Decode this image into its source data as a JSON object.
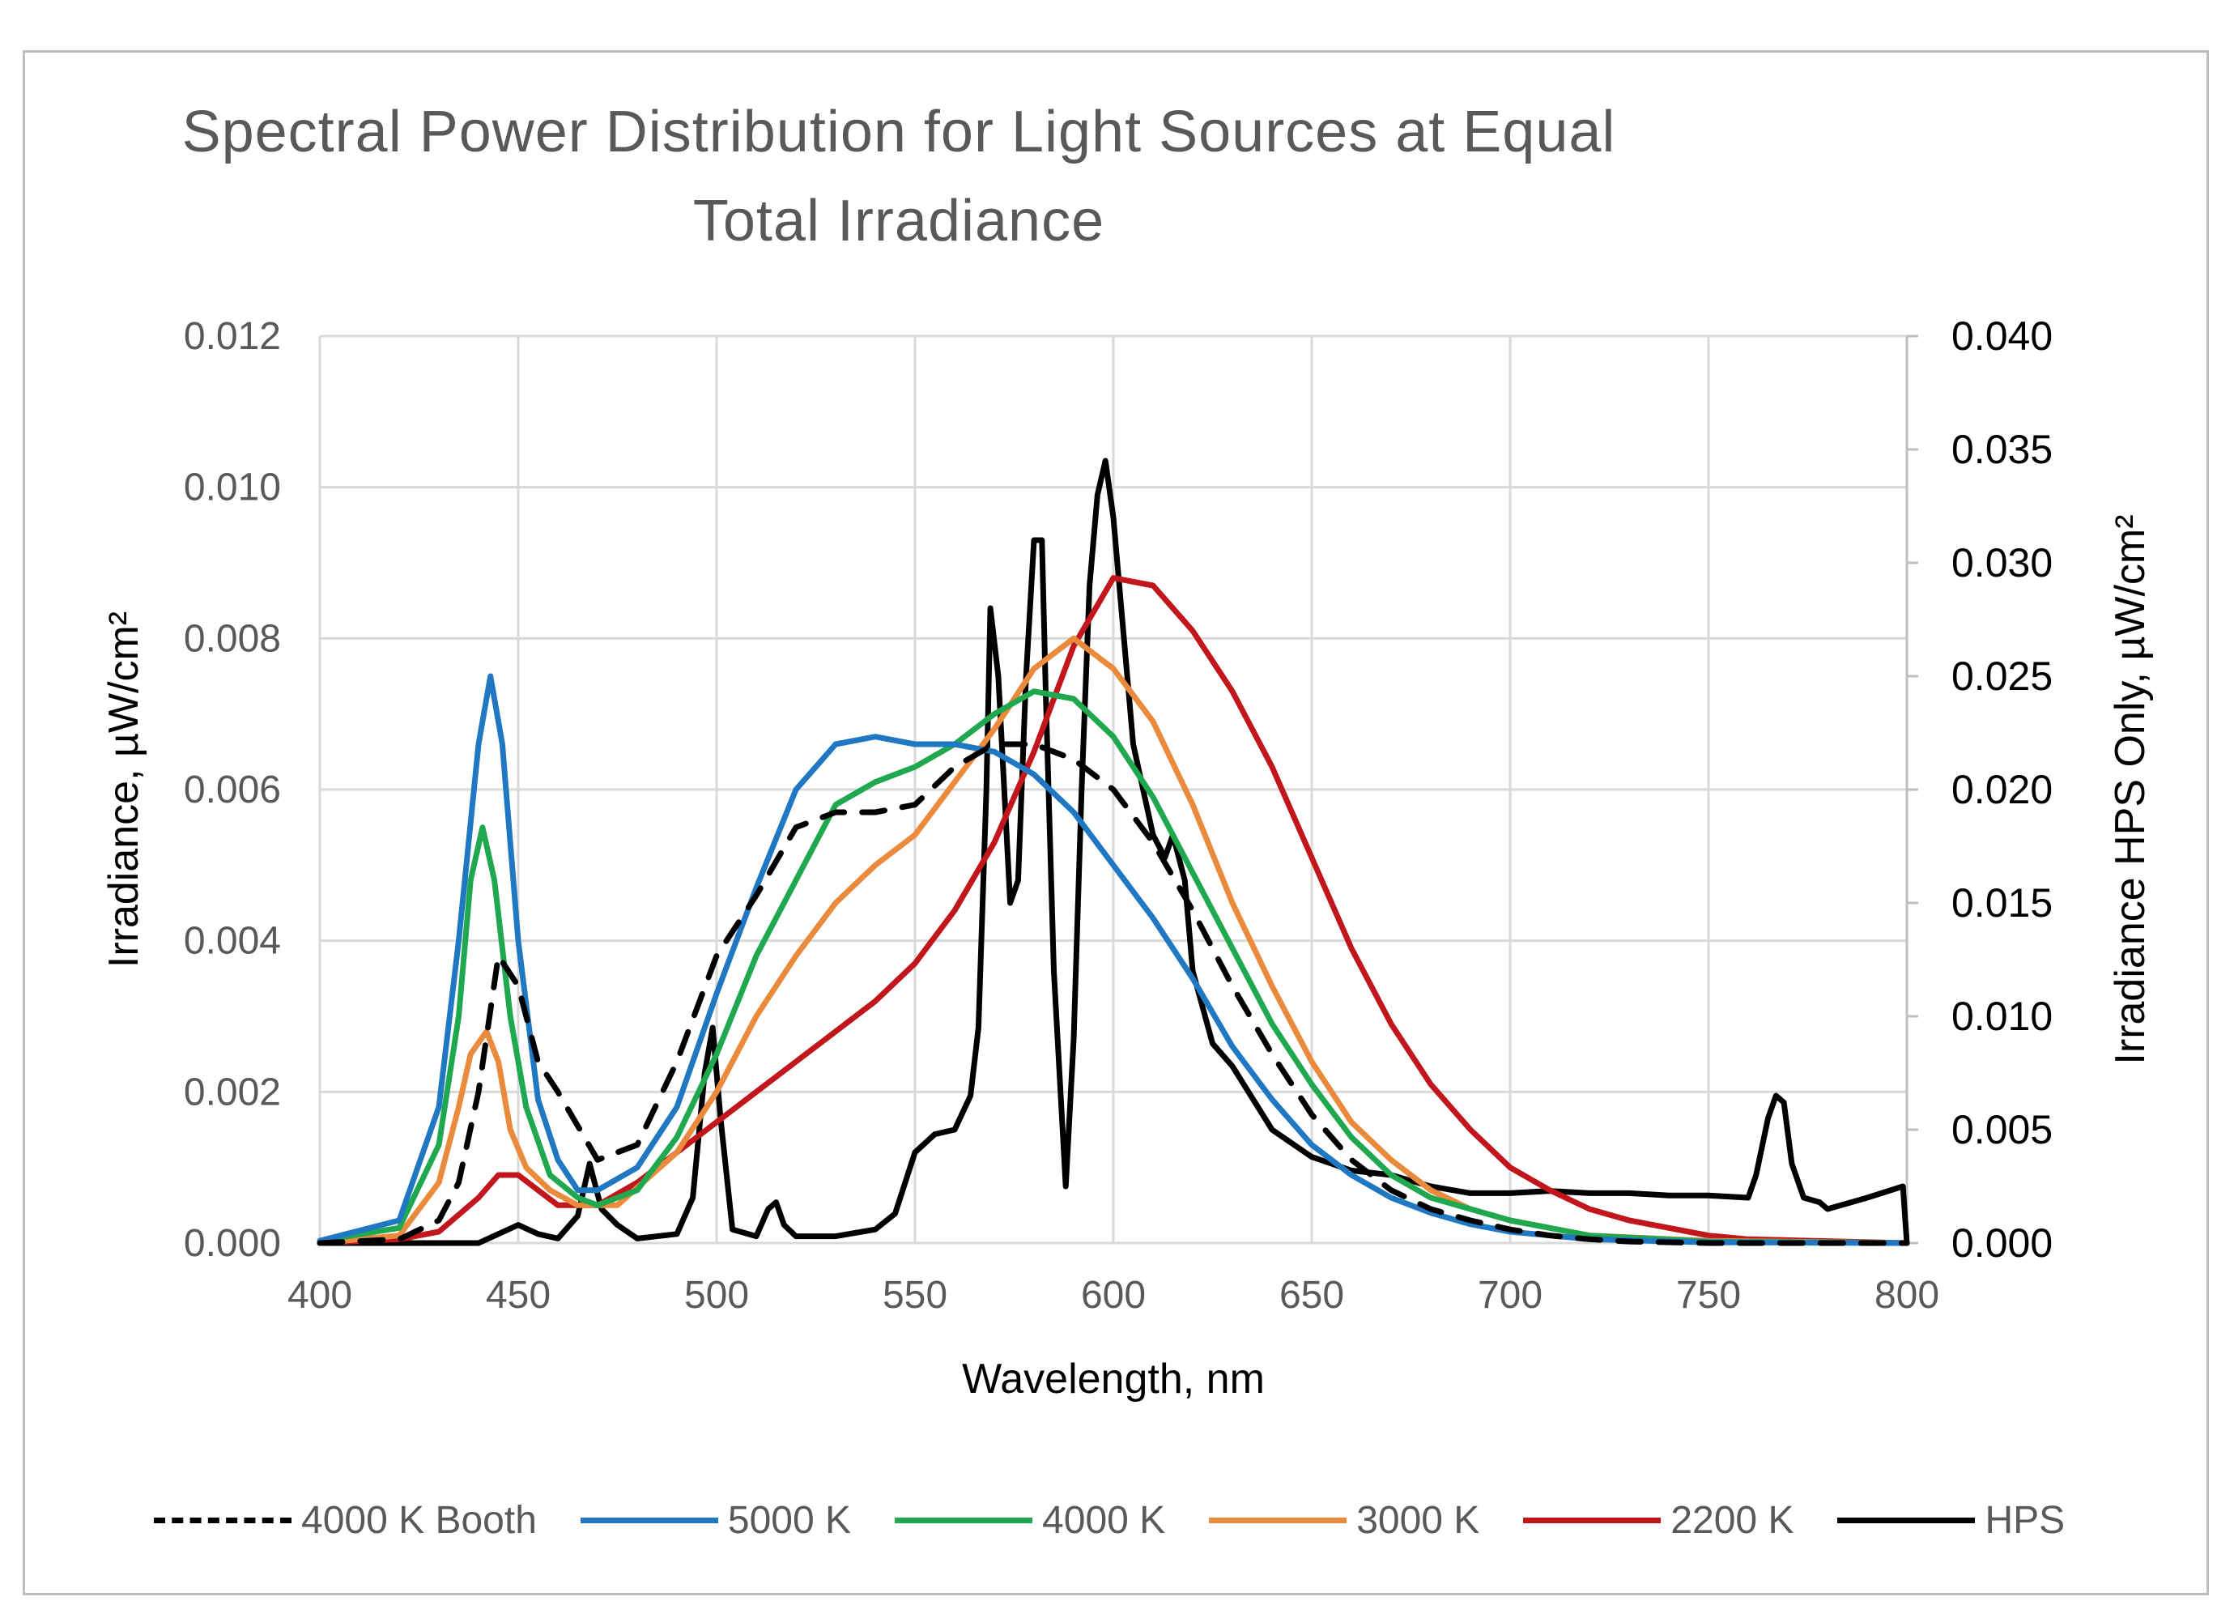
{
  "chart_data": {
    "type": "line",
    "title_line1": "Spectral Power Distribution for Light Sources at Equal",
    "title_line2": "Total Irradiance",
    "xlabel": "Wavelength, nm",
    "ylabel": "Irradiance, µW/cm²",
    "y2label": "Irradiance HPS Only, µW/cm²",
    "xlim": [
      400,
      800
    ],
    "ylim": [
      0,
      0.012
    ],
    "y2lim": [
      0,
      0.04
    ],
    "xticks": [
      "400",
      "450",
      "500",
      "550",
      "600",
      "650",
      "700",
      "750",
      "800"
    ],
    "yticks": [
      "0.000",
      "0.002",
      "0.004",
      "0.006",
      "0.008",
      "0.010",
      "0.012"
    ],
    "y2ticks": [
      "0.000",
      "0.005",
      "0.010",
      "0.015",
      "0.020",
      "0.025",
      "0.030",
      "0.035",
      "0.040"
    ],
    "series": [
      {
        "name": "4000 K Booth",
        "color": "#000000",
        "dash": true,
        "axis": "left",
        "x": [
          400,
          420,
          430,
          435,
          440,
          445,
          450,
          455,
          460,
          470,
          480,
          490,
          500,
          510,
          520,
          530,
          540,
          550,
          560,
          570,
          580,
          590,
          600,
          610,
          620,
          630,
          640,
          650,
          660,
          670,
          680,
          690,
          700,
          710,
          720,
          730,
          750,
          800
        ],
        "y": [
          0,
          5e-05,
          0.0003,
          0.0008,
          0.002,
          0.0038,
          0.0034,
          0.0024,
          0.002,
          0.0011,
          0.0013,
          0.0024,
          0.0038,
          0.0046,
          0.0055,
          0.0057,
          0.0057,
          0.0058,
          0.0063,
          0.0066,
          0.0066,
          0.0064,
          0.006,
          0.0053,
          0.0044,
          0.0034,
          0.0025,
          0.0017,
          0.0011,
          0.0007,
          0.00045,
          0.0003,
          0.00018,
          0.0001,
          5e-05,
          2e-05,
          0,
          0
        ]
      },
      {
        "name": "5000 K",
        "color": "#1f78c1",
        "dash": false,
        "axis": "left",
        "x": [
          400,
          420,
          430,
          435,
          440,
          443,
          446,
          450,
          455,
          460,
          465,
          470,
          480,
          490,
          500,
          510,
          520,
          530,
          540,
          550,
          560,
          570,
          580,
          590,
          600,
          610,
          620,
          630,
          640,
          650,
          660,
          670,
          680,
          690,
          700,
          720,
          750,
          800
        ],
        "y": [
          3e-05,
          0.0003,
          0.0018,
          0.004,
          0.0066,
          0.0075,
          0.0066,
          0.004,
          0.0019,
          0.0011,
          0.0007,
          0.0007,
          0.001,
          0.0018,
          0.0033,
          0.0047,
          0.006,
          0.0066,
          0.0067,
          0.0066,
          0.0066,
          0.0065,
          0.0062,
          0.0057,
          0.005,
          0.0043,
          0.0035,
          0.0026,
          0.0019,
          0.0013,
          0.0009,
          0.0006,
          0.0004,
          0.00025,
          0.00015,
          5e-05,
          1e-05,
          0
        ]
      },
      {
        "name": "4000 K",
        "color": "#1fa84f",
        "dash": false,
        "axis": "left",
        "x": [
          400,
          420,
          430,
          435,
          438,
          441,
          444,
          448,
          452,
          458,
          465,
          470,
          480,
          490,
          500,
          510,
          520,
          530,
          540,
          550,
          560,
          570,
          580,
          590,
          600,
          610,
          620,
          630,
          640,
          650,
          660,
          670,
          680,
          690,
          700,
          710,
          720,
          750,
          800
        ],
        "y": [
          3e-05,
          0.0002,
          0.0013,
          0.003,
          0.0048,
          0.0055,
          0.0048,
          0.003,
          0.0018,
          0.0009,
          0.0006,
          0.0005,
          0.0007,
          0.0014,
          0.0025,
          0.0038,
          0.0048,
          0.0058,
          0.0061,
          0.0063,
          0.0066,
          0.007,
          0.0073,
          0.0072,
          0.0067,
          0.0059,
          0.0049,
          0.0039,
          0.0029,
          0.0021,
          0.0014,
          0.0009,
          0.0006,
          0.00045,
          0.0003,
          0.0002,
          0.0001,
          2e-05,
          0
        ]
      },
      {
        "name": "3000 K",
        "color": "#ea8a3c",
        "dash": false,
        "axis": "left",
        "x": [
          400,
          420,
          430,
          435,
          438,
          442,
          445,
          448,
          452,
          458,
          465,
          475,
          490,
          500,
          510,
          520,
          530,
          540,
          550,
          560,
          570,
          580,
          590,
          600,
          610,
          620,
          630,
          640,
          650,
          660,
          670,
          680,
          690,
          700,
          720,
          750,
          800
        ],
        "y": [
          0,
          0.0001,
          0.0008,
          0.0018,
          0.0025,
          0.0028,
          0.0024,
          0.0015,
          0.001,
          0.0007,
          0.0005,
          0.0005,
          0.0012,
          0.002,
          0.003,
          0.0038,
          0.0045,
          0.005,
          0.0054,
          0.0061,
          0.0068,
          0.0076,
          0.008,
          0.0076,
          0.0069,
          0.0058,
          0.0045,
          0.0034,
          0.0024,
          0.0016,
          0.0011,
          0.0007,
          0.00045,
          0.0003,
          0.0001,
          3e-05,
          0
        ]
      },
      {
        "name": "2200 K",
        "color": "#c0161c",
        "dash": false,
        "axis": "left",
        "x": [
          400,
          420,
          430,
          440,
          445,
          450,
          455,
          460,
          470,
          480,
          490,
          500,
          510,
          520,
          530,
          540,
          550,
          560,
          570,
          580,
          590,
          600,
          610,
          620,
          630,
          640,
          650,
          660,
          670,
          680,
          690,
          700,
          710,
          720,
          730,
          740,
          750,
          760,
          800
        ],
        "y": [
          0,
          5e-05,
          0.00015,
          0.0006,
          0.0009,
          0.0009,
          0.0007,
          0.0005,
          0.0005,
          0.0008,
          0.0012,
          0.0016,
          0.002,
          0.0024,
          0.0028,
          0.0032,
          0.0037,
          0.0044,
          0.0053,
          0.0065,
          0.0079,
          0.0088,
          0.0087,
          0.0081,
          0.0073,
          0.0063,
          0.0051,
          0.0039,
          0.0029,
          0.0021,
          0.0015,
          0.001,
          0.0007,
          0.00045,
          0.0003,
          0.0002,
          0.0001,
          5e-05,
          0
        ]
      },
      {
        "name": "HPS",
        "color": "#000000",
        "dash": false,
        "axis": "right",
        "x": [
          400,
          440,
          445,
          450,
          455,
          460,
          465,
          468,
          471,
          475,
          480,
          490,
          494,
          497,
          499,
          501,
          504,
          510,
          513,
          515,
          517,
          520,
          530,
          540,
          545,
          550,
          555,
          560,
          564,
          566,
          568,
          569,
          571,
          574,
          576,
          578,
          580,
          582,
          583,
          585,
          588,
          590,
          592,
          594,
          596,
          598,
          600,
          602,
          605,
          610,
          613,
          615,
          618,
          620,
          625,
          630,
          640,
          650,
          660,
          670,
          680,
          690,
          700,
          710,
          720,
          730,
          740,
          750,
          760,
          762,
          765,
          767,
          769,
          771,
          774,
          778,
          780,
          790,
          799,
          800
        ],
        "y": [
          0,
          0,
          0.0004,
          0.0008,
          0.0004,
          0.0002,
          0.0012,
          0.0035,
          0.0015,
          0.0008,
          0.0002,
          0.0004,
          0.002,
          0.0075,
          0.0095,
          0.0055,
          0.0006,
          0.0003,
          0.0015,
          0.0018,
          0.0008,
          0.0003,
          0.0003,
          0.0006,
          0.0013,
          0.004,
          0.0048,
          0.005,
          0.0065,
          0.0095,
          0.02,
          0.028,
          0.025,
          0.015,
          0.016,
          0.025,
          0.031,
          0.031,
          0.024,
          0.012,
          0.0025,
          0.009,
          0.02,
          0.029,
          0.033,
          0.0345,
          0.032,
          0.028,
          0.022,
          0.018,
          0.017,
          0.018,
          0.016,
          0.012,
          0.0088,
          0.0078,
          0.005,
          0.0038,
          0.0032,
          0.003,
          0.0025,
          0.0022,
          0.0022,
          0.0023,
          0.0022,
          0.0022,
          0.0021,
          0.0021,
          0.002,
          0.003,
          0.0055,
          0.0065,
          0.0062,
          0.0035,
          0.002,
          0.0018,
          0.0015,
          0.002,
          0.0025,
          0
        ]
      }
    ]
  }
}
